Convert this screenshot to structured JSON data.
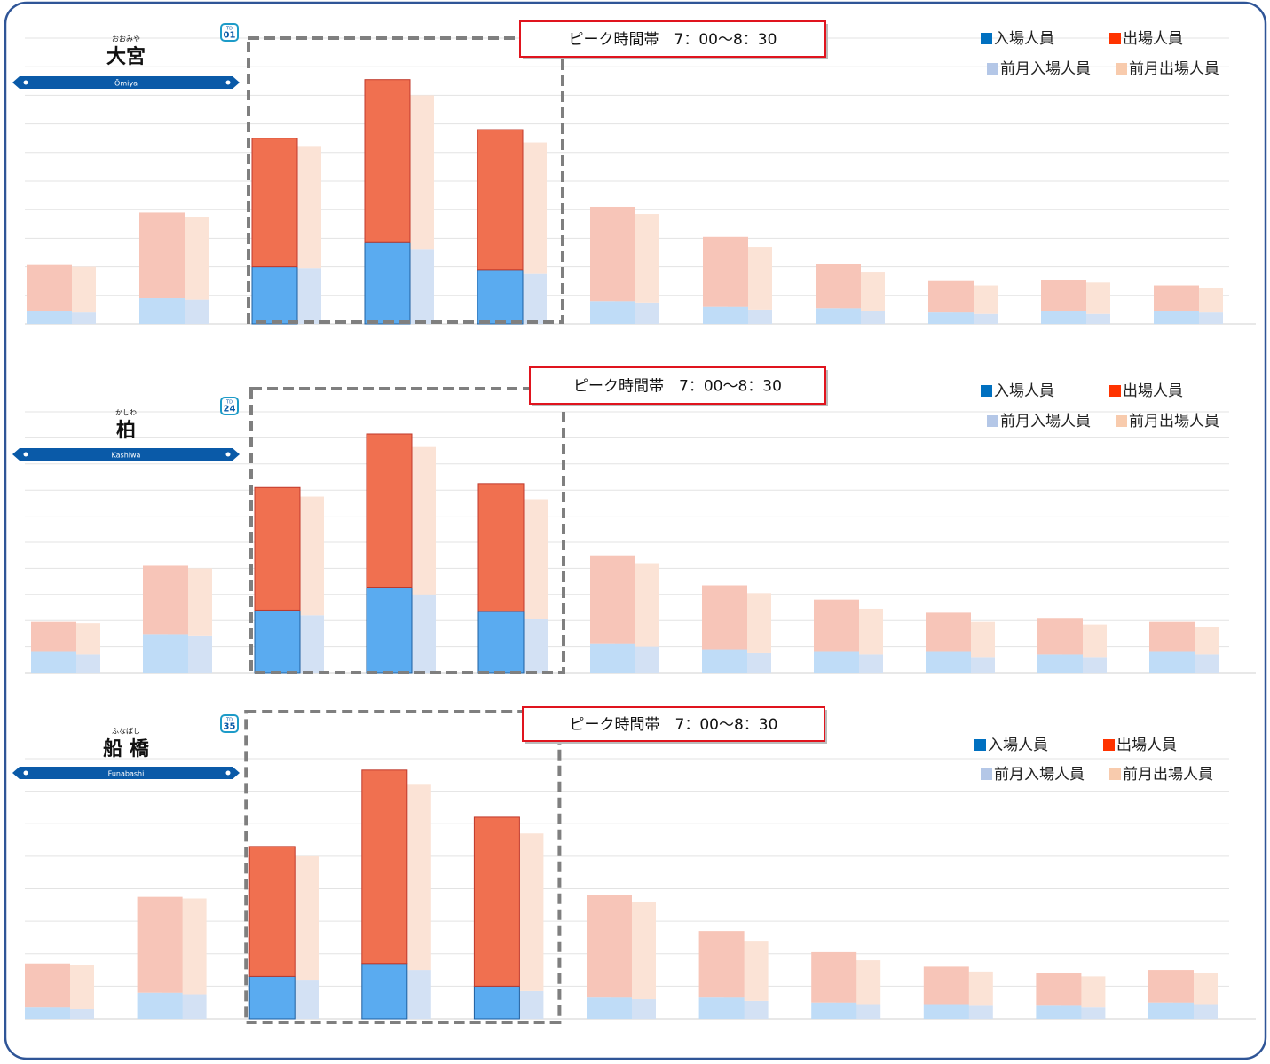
{
  "chart_data": [
    {
      "type": "bar",
      "stacked": true,
      "grid": true,
      "legend": "top-right",
      "highlight": [
        2,
        4
      ],
      "station": {
        "reading": "おおみや",
        "name": "大宮",
        "romaji": "Ōmiya",
        "line_code": "TD",
        "number": "01"
      },
      "annotation": "ピーク時間帯　7：00〜8：30",
      "categories": [
        null,
        null,
        null,
        null,
        null,
        null,
        null,
        null,
        null,
        null,
        null
      ],
      "ylim": [
        0,
        10
      ],
      "yticks": [
        0,
        1,
        2,
        3,
        4,
        5,
        6,
        7,
        8,
        9,
        10
      ],
      "series": [
        {
          "name": "入場人員",
          "stack": "current",
          "color": "#0070c0",
          "bar_color": "#5aabf0",
          "faded_color": "#bfdcf7",
          "values": [
            0.46,
            0.9,
            2.0,
            2.85,
            1.9,
            0.8,
            0.6,
            0.55,
            0.4,
            0.45,
            0.45
          ]
        },
        {
          "name": "出場人員",
          "stack": "current",
          "color": "#ff3300",
          "bar_color": "#f07050",
          "faded_color": "#f7c5b8",
          "values": [
            1.6,
            3.0,
            4.5,
            5.7,
            4.9,
            3.3,
            2.45,
            1.55,
            1.1,
            1.1,
            0.9
          ]
        },
        {
          "name": "前月入場人員",
          "stack": "previous",
          "color": "#b4c7e7",
          "bar_color": "#d3e1f4",
          "values": [
            0.4,
            0.85,
            1.95,
            2.6,
            1.75,
            0.75,
            0.5,
            0.45,
            0.35,
            0.35,
            0.4
          ]
        },
        {
          "name": "前月出場人員",
          "stack": "previous",
          "color": "#f8cbad",
          "bar_color": "#fbe3d6",
          "values": [
            1.6,
            2.9,
            4.25,
            5.4,
            4.6,
            3.1,
            2.2,
            1.35,
            1.0,
            1.1,
            0.85
          ]
        }
      ]
    },
    {
      "type": "bar",
      "stacked": true,
      "grid": true,
      "legend": "top-right",
      "highlight": [
        2,
        4
      ],
      "station": {
        "reading": "かしわ",
        "name": "柏",
        "romaji": "Kashiwa",
        "line_code": "TD",
        "number": "24"
      },
      "annotation": "ピーク時間帯　7：00〜8：30",
      "categories": [
        null,
        null,
        null,
        null,
        null,
        null,
        null,
        null,
        null,
        null,
        null
      ],
      "ylim": [
        0,
        10
      ],
      "yticks": [
        0,
        1,
        2,
        3,
        4,
        5,
        6,
        7,
        8,
        9,
        10
      ],
      "series": [
        {
          "name": "入場人員",
          "stack": "current",
          "color": "#0070c0",
          "bar_color": "#5aabf0",
          "faded_color": "#bfdcf7",
          "values": [
            0.8,
            1.45,
            2.4,
            3.25,
            2.35,
            1.1,
            0.9,
            0.8,
            0.8,
            0.7,
            0.8
          ]
        },
        {
          "name": "出場人員",
          "stack": "current",
          "color": "#ff3300",
          "bar_color": "#f07050",
          "faded_color": "#f7c5b8",
          "values": [
            1.15,
            2.65,
            4.7,
            5.9,
            4.9,
            3.4,
            2.45,
            2.0,
            1.5,
            1.4,
            1.15
          ]
        },
        {
          "name": "前月入場人員",
          "stack": "previous",
          "color": "#b4c7e7",
          "bar_color": "#d3e1f4",
          "values": [
            0.7,
            1.4,
            2.2,
            3.0,
            2.05,
            1.0,
            0.75,
            0.7,
            0.6,
            0.6,
            0.7
          ]
        },
        {
          "name": "前月出場人員",
          "stack": "previous",
          "color": "#f8cbad",
          "bar_color": "#fbe3d6",
          "values": [
            1.2,
            2.6,
            4.55,
            5.65,
            4.6,
            3.2,
            2.3,
            1.75,
            1.35,
            1.25,
            1.05
          ]
        }
      ]
    },
    {
      "type": "bar",
      "stacked": true,
      "grid": true,
      "legend": "top-right",
      "highlight": [
        2,
        4
      ],
      "station": {
        "reading": "ふなばし",
        "name": "船 橋",
        "romaji": "Funabashi",
        "line_code": "TD",
        "number": "35"
      },
      "annotation": "ピーク時間帯　7：00〜8：30",
      "categories": [
        null,
        null,
        null,
        null,
        null,
        null,
        null,
        null,
        null,
        null,
        null
      ],
      "ylim": [
        0,
        8
      ],
      "yticks": [
        0,
        1,
        2,
        3,
        4,
        5,
        6,
        7,
        8
      ],
      "series": [
        {
          "name": "入場人員",
          "stack": "current",
          "color": "#0070c0",
          "bar_color": "#5aabf0",
          "faded_color": "#bfdcf7",
          "values": [
            0.35,
            0.8,
            1.3,
            1.7,
            1.0,
            0.65,
            0.65,
            0.5,
            0.45,
            0.4,
            0.5
          ]
        },
        {
          "name": "出場人員",
          "stack": "current",
          "color": "#ff3300",
          "bar_color": "#f07050",
          "faded_color": "#f7c5b8",
          "values": [
            1.35,
            2.95,
            4.0,
            5.95,
            5.2,
            3.15,
            2.05,
            1.55,
            1.15,
            1.0,
            1.0
          ]
        },
        {
          "name": "前月入場人員",
          "stack": "previous",
          "color": "#b4c7e7",
          "bar_color": "#d3e1f4",
          "values": [
            0.3,
            0.75,
            1.2,
            1.5,
            0.85,
            0.6,
            0.55,
            0.45,
            0.4,
            0.35,
            0.45
          ]
        },
        {
          "name": "前月出場人員",
          "stack": "previous",
          "color": "#f8cbad",
          "bar_color": "#fbe3d6",
          "values": [
            1.35,
            2.95,
            3.8,
            5.7,
            4.85,
            3.0,
            1.85,
            1.35,
            1.05,
            0.95,
            0.95
          ]
        }
      ]
    }
  ]
}
